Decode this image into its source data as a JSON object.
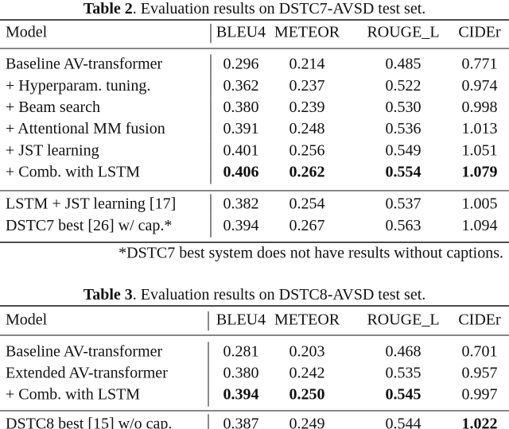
{
  "tables": [
    {
      "caption": {
        "label": "Table 2",
        "text": ". Evaluation results on DSTC7-AVSD test set."
      },
      "header": [
        "Model",
        "BLEU4",
        "METEOR",
        "ROUGE_L",
        "CIDEr"
      ],
      "groups": [
        [
          {
            "cells": [
              "Baseline AV-transformer",
              "0.296",
              "0.214",
              "0.485",
              "0.771"
            ],
            "bold": [
              false,
              false,
              false,
              false,
              false
            ]
          },
          {
            "cells": [
              "+ Hyperparam. tuning.",
              "0.362",
              "0.237",
              "0.522",
              "0.974"
            ],
            "bold": [
              false,
              false,
              false,
              false,
              false
            ]
          },
          {
            "cells": [
              "+ Beam search",
              "0.380",
              "0.239",
              "0.530",
              "0.998"
            ],
            "bold": [
              false,
              false,
              false,
              false,
              false
            ]
          },
          {
            "cells": [
              "+ Attentional MM fusion",
              "0.391",
              "0.248",
              "0.536",
              "1.013"
            ],
            "bold": [
              false,
              false,
              false,
              false,
              false
            ]
          },
          {
            "cells": [
              "+ JST learning",
              "0.401",
              "0.256",
              "0.549",
              "1.051"
            ],
            "bold": [
              false,
              false,
              false,
              false,
              false
            ]
          },
          {
            "cells": [
              "+ Comb. with LSTM",
              "0.406",
              "0.262",
              "0.554",
              "1.079"
            ],
            "bold": [
              false,
              true,
              true,
              true,
              true
            ]
          }
        ],
        [
          {
            "cells": [
              "LSTM + JST learning [17]",
              "0.382",
              "0.254",
              "0.537",
              "1.005"
            ],
            "bold": [
              false,
              false,
              false,
              false,
              false
            ]
          },
          {
            "cells": [
              "DSTC7 best [26] w/ cap.*",
              "0.394",
              "0.267",
              "0.563",
              "1.094"
            ],
            "bold": [
              false,
              false,
              false,
              false,
              false
            ]
          }
        ]
      ],
      "footnote": "*DSTC7 best system does not have results without captions."
    },
    {
      "caption": {
        "label": "Table 3",
        "text": ". Evaluation results on DSTC8-AVSD test set."
      },
      "header": [
        "Model",
        "BLEU4",
        "METEOR",
        "ROUGE_L",
        "CIDEr"
      ],
      "groups": [
        [
          {
            "cells": [
              "Baseline AV-transformer",
              "0.281",
              "0.203",
              "0.468",
              "0.701"
            ],
            "bold": [
              false,
              false,
              false,
              false,
              false
            ]
          },
          {
            "cells": [
              "Extended AV-transformer",
              "0.380",
              "0.242",
              "0.535",
              "0.957"
            ],
            "bold": [
              false,
              false,
              false,
              false,
              false
            ]
          },
          {
            "cells": [
              "+ Comb. with LSTM",
              "0.394",
              "0.250",
              "0.545",
              "0.997"
            ],
            "bold": [
              false,
              true,
              true,
              true,
              false
            ]
          }
        ],
        [
          {
            "cells": [
              "DSTC8 best [15] w/o cap.",
              "0.387",
              "0.249",
              "0.544",
              "1.022"
            ],
            "bold": [
              false,
              false,
              false,
              false,
              true
            ]
          }
        ]
      ]
    }
  ]
}
